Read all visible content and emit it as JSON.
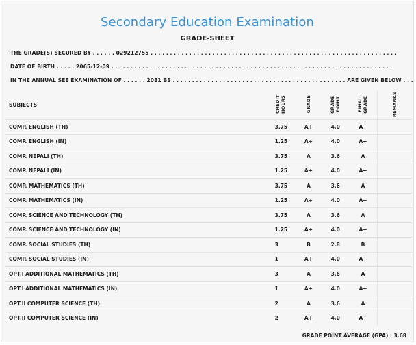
{
  "header": {
    "title": "Secondary Education Examination",
    "subtitle": "GRADE-SHEET"
  },
  "info": {
    "line1": "THE GRADE(S) SECURED BY . . . . . . 029212755 . . . . . . . . . . . . . . . . . . . . . . . . . . . . . . . . . . . . . . . . . . . . . . . . . . . . . . . . . . . . . . . .",
    "line2": "DATE OF BIRTH . . . . . 2065-12-09 . . . . . . . . . . . . . . . . . . . . . . . . . . . . . . . . . . . . . . . . . . . . . . . . . . . . . . . . . . . . . . . . . . . . . . . . .",
    "line3": "IN THE ANNUAL SEE EXAMINATION OF . . . . . . 2081 BS . . . . . . . . . . . . . . . . . . . . . . . . . . . . . . . . . . . . . . . . . . . . . ARE GIVEN BELOW . . ."
  },
  "table": {
    "headers": {
      "subjects": "SUBJECTS",
      "credit_hours": "CREDIT HOURS",
      "grade": "GRADE",
      "grade_point": "GRADE POINT",
      "final_grade": "FINAL GRADE",
      "remarks": "REMARKS"
    },
    "rows": [
      {
        "subject": "COMP. ENGLISH (TH)",
        "credit": "3.75",
        "grade": "A+",
        "point": "4.0",
        "final": "A+",
        "remarks": ""
      },
      {
        "subject": "COMP. ENGLISH (IN)",
        "credit": "1.25",
        "grade": "A+",
        "point": "4.0",
        "final": "A+",
        "remarks": ""
      },
      {
        "subject": "COMP. NEPALI (TH)",
        "credit": "3.75",
        "grade": "A",
        "point": "3.6",
        "final": "A",
        "remarks": ""
      },
      {
        "subject": "COMP. NEPALI (IN)",
        "credit": "1.25",
        "grade": "A+",
        "point": "4.0",
        "final": "A+",
        "remarks": ""
      },
      {
        "subject": "COMP. MATHEMATICS (TH)",
        "credit": "3.75",
        "grade": "A",
        "point": "3.6",
        "final": "A",
        "remarks": ""
      },
      {
        "subject": "COMP. MATHEMATICS (IN)",
        "credit": "1.25",
        "grade": "A+",
        "point": "4.0",
        "final": "A+",
        "remarks": ""
      },
      {
        "subject": "COMP. SCIENCE AND TECHNOLOGY (TH)",
        "credit": "3.75",
        "grade": "A",
        "point": "3.6",
        "final": "A",
        "remarks": ""
      },
      {
        "subject": "COMP. SCIENCE AND TECHNOLOGY (IN)",
        "credit": "1.25",
        "grade": "A+",
        "point": "4.0",
        "final": "A+",
        "remarks": ""
      },
      {
        "subject": "COMP. SOCIAL STUDIES (TH)",
        "credit": "3",
        "grade": "B",
        "point": "2.8",
        "final": "B",
        "remarks": ""
      },
      {
        "subject": "COMP. SOCIAL STUDIES (IN)",
        "credit": "1",
        "grade": "A+",
        "point": "4.0",
        "final": "A+",
        "remarks": ""
      },
      {
        "subject": "OPT.I ADDITIONAL MATHEMATICS (TH)",
        "credit": "3",
        "grade": "A",
        "point": "3.6",
        "final": "A",
        "remarks": ""
      },
      {
        "subject": "OPT.I ADDITIONAL MATHEMATICS (IN)",
        "credit": "1",
        "grade": "A+",
        "point": "4.0",
        "final": "A+",
        "remarks": ""
      },
      {
        "subject": "OPT.II COMPUTER SCIENCE (TH)",
        "credit": "2",
        "grade": "A",
        "point": "3.6",
        "final": "A",
        "remarks": ""
      },
      {
        "subject": "OPT.II COMPUTER SCIENCE (IN)",
        "credit": "2",
        "grade": "A+",
        "point": "4.0",
        "final": "A+",
        "remarks": ""
      }
    ]
  },
  "footer": {
    "gpa_text": "GRADE POINT AVERAGE (GPA) : 3.68"
  },
  "colors": {
    "title": "#3a93d6",
    "background": "#f6f6f6"
  }
}
